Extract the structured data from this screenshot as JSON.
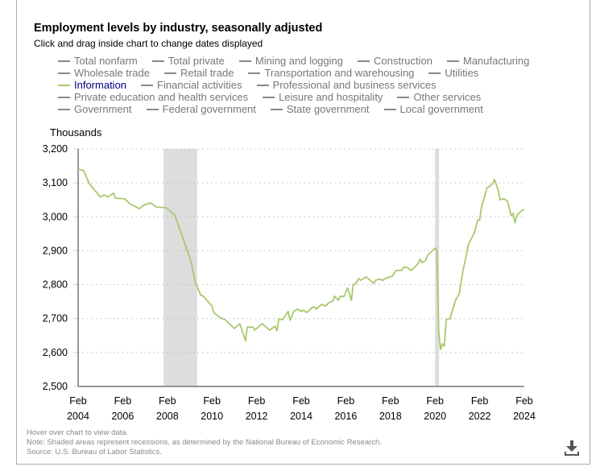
{
  "title": "Employment levels by industry, seasonally adjusted",
  "subtitle": "Click and drag inside chart to change dates displayed",
  "legend_rows": [
    [
      "Total nonfarm",
      "Total private",
      "Mining and logging",
      "Construction",
      "Manufacturing"
    ],
    [
      "Wholesale trade",
      "Retail trade",
      "Transportation and warehousing",
      "Utilities"
    ],
    [
      "Information",
      "Financial activities",
      "Professional and business services"
    ],
    [
      "Private education and health services",
      "Leisure and hospitality",
      "Other services"
    ],
    [
      "Government",
      "Federal government",
      "State government",
      "Local government"
    ]
  ],
  "active_series": "Information",
  "notes": {
    "hover": "Hover over chart to view data.",
    "note": "Note: Shaded areas represent recessions, as determined by the National Bureau of Economic Research.",
    "source": "Source: U.S. Bureau of Labor Statistics."
  },
  "download_icon": "download-icon",
  "colors": {
    "series": "#a8c86c",
    "active_legend_text": "#000080",
    "legend_text": "#777777",
    "recession": "#dddddd"
  },
  "chart_data": {
    "type": "line",
    "ylabel": "Thousands",
    "ylim": [
      2500,
      3200
    ],
    "yticks": [
      2500,
      2600,
      2700,
      2800,
      2900,
      3000,
      3100,
      3200
    ],
    "ytick_labels": [
      "2,500",
      "2,600",
      "2,700",
      "2,800",
      "2,900",
      "3,000",
      "3,100",
      "3,200"
    ],
    "xlim": [
      "2004-02",
      "2024-02"
    ],
    "xticks": [
      "2004-02",
      "2006-02",
      "2008-02",
      "2010-02",
      "2012-02",
      "2014-02",
      "2016-02",
      "2018-02",
      "2020-02",
      "2022-02",
      "2024-02"
    ],
    "xtick_labels": [
      [
        "Feb",
        "2004"
      ],
      [
        "Feb",
        "2006"
      ],
      [
        "Feb",
        "2008"
      ],
      [
        "Feb",
        "2010"
      ],
      [
        "Feb",
        "2012"
      ],
      [
        "Feb",
        "2014"
      ],
      [
        "Feb",
        "2016"
      ],
      [
        "Feb",
        "2018"
      ],
      [
        "Feb",
        "2020"
      ],
      [
        "Feb",
        "2022"
      ],
      [
        "Feb",
        "2024"
      ]
    ],
    "grid": "horizontal dotted",
    "recessions": [
      [
        "2007-12",
        "2009-06"
      ],
      [
        "2020-02",
        "2020-04"
      ]
    ],
    "series": [
      {
        "name": "Information",
        "points": [
          [
            "2004-02",
            3141
          ],
          [
            "2004-05",
            3136
          ],
          [
            "2004-08",
            3098
          ],
          [
            "2005-02",
            3058
          ],
          [
            "2005-04",
            3065
          ],
          [
            "2005-06",
            3058
          ],
          [
            "2005-09",
            3070
          ],
          [
            "2005-10",
            3055
          ],
          [
            "2006-03",
            3053
          ],
          [
            "2006-06",
            3038
          ],
          [
            "2006-11",
            3024
          ],
          [
            "2007-01",
            3034
          ],
          [
            "2007-05",
            3041
          ],
          [
            "2007-08",
            3029
          ],
          [
            "2008-01",
            3027
          ],
          [
            "2008-03",
            3020
          ],
          [
            "2008-06",
            3005
          ],
          [
            "2008-09",
            2958
          ],
          [
            "2009-01",
            2896
          ],
          [
            "2009-03",
            2863
          ],
          [
            "2009-05",
            2808
          ],
          [
            "2009-08",
            2768
          ],
          [
            "2009-09",
            2768
          ],
          [
            "2010-02",
            2737
          ],
          [
            "2010-03",
            2718
          ],
          [
            "2010-06",
            2704
          ],
          [
            "2010-09",
            2697
          ],
          [
            "2011-02",
            2671
          ],
          [
            "2011-05",
            2685
          ],
          [
            "2011-08",
            2635
          ],
          [
            "2011-09",
            2675
          ],
          [
            "2011-12",
            2675
          ],
          [
            "2012-01",
            2666
          ],
          [
            "2012-05",
            2685
          ],
          [
            "2012-09",
            2666
          ],
          [
            "2012-12",
            2678
          ],
          [
            "2013-01",
            2664
          ],
          [
            "2013-02",
            2699
          ],
          [
            "2013-04",
            2697
          ],
          [
            "2013-06",
            2713
          ],
          [
            "2013-07",
            2721
          ],
          [
            "2013-08",
            2695
          ],
          [
            "2013-10",
            2721
          ],
          [
            "2013-12",
            2728
          ],
          [
            "2014-02",
            2721
          ],
          [
            "2014-03",
            2725
          ],
          [
            "2014-05",
            2718
          ],
          [
            "2014-08",
            2733
          ],
          [
            "2014-09",
            2735
          ],
          [
            "2014-10",
            2728
          ],
          [
            "2015-01",
            2742
          ],
          [
            "2015-03",
            2737
          ],
          [
            "2015-05",
            2747
          ],
          [
            "2015-07",
            2752
          ],
          [
            "2015-08",
            2766
          ],
          [
            "2015-10",
            2754
          ],
          [
            "2015-11",
            2766
          ],
          [
            "2016-01",
            2765
          ],
          [
            "2016-03",
            2790
          ],
          [
            "2016-05",
            2754
          ],
          [
            "2016-06",
            2801
          ],
          [
            "2016-07",
            2801
          ],
          [
            "2016-09",
            2818
          ],
          [
            "2016-10",
            2813
          ],
          [
            "2017-01",
            2823
          ],
          [
            "2017-05",
            2804
          ],
          [
            "2017-06",
            2813
          ],
          [
            "2017-08",
            2816
          ],
          [
            "2017-10",
            2813
          ],
          [
            "2017-11",
            2818
          ],
          [
            "2018-03",
            2825
          ],
          [
            "2018-05",
            2842
          ],
          [
            "2018-08",
            2842
          ],
          [
            "2018-09",
            2851
          ],
          [
            "2018-11",
            2851
          ],
          [
            "2019-01",
            2842
          ],
          [
            "2019-03",
            2851
          ],
          [
            "2019-05",
            2863
          ],
          [
            "2019-06",
            2875
          ],
          [
            "2019-07",
            2865
          ],
          [
            "2019-09",
            2872
          ],
          [
            "2019-10",
            2887
          ],
          [
            "2020-02",
            2908
          ],
          [
            "2020-03",
            2899
          ],
          [
            "2020-04",
            2659
          ],
          [
            "2020-05",
            2609
          ],
          [
            "2020-06",
            2626
          ],
          [
            "2020-07",
            2619
          ],
          [
            "2020-08",
            2697
          ],
          [
            "2020-10",
            2699
          ],
          [
            "2020-11",
            2718
          ],
          [
            "2021-01",
            2754
          ],
          [
            "2021-03",
            2773
          ],
          [
            "2021-05",
            2840
          ],
          [
            "2021-08",
            2920
          ],
          [
            "2021-11",
            2951
          ],
          [
            "2022-01",
            2991
          ],
          [
            "2022-02",
            2991
          ],
          [
            "2022-03",
            3029
          ],
          [
            "2022-06",
            3086
          ],
          [
            "2022-07",
            3088
          ],
          [
            "2022-09",
            3098
          ],
          [
            "2022-10",
            3110
          ],
          [
            "2022-12",
            3077
          ],
          [
            "2023-01",
            3050
          ],
          [
            "2023-03",
            3053
          ],
          [
            "2023-05",
            3046
          ],
          [
            "2023-07",
            3003
          ],
          [
            "2023-08",
            3010
          ],
          [
            "2023-09",
            2982
          ],
          [
            "2023-10",
            3005
          ],
          [
            "2024-01",
            3020
          ],
          [
            "2024-02",
            3021
          ]
        ]
      }
    ]
  }
}
